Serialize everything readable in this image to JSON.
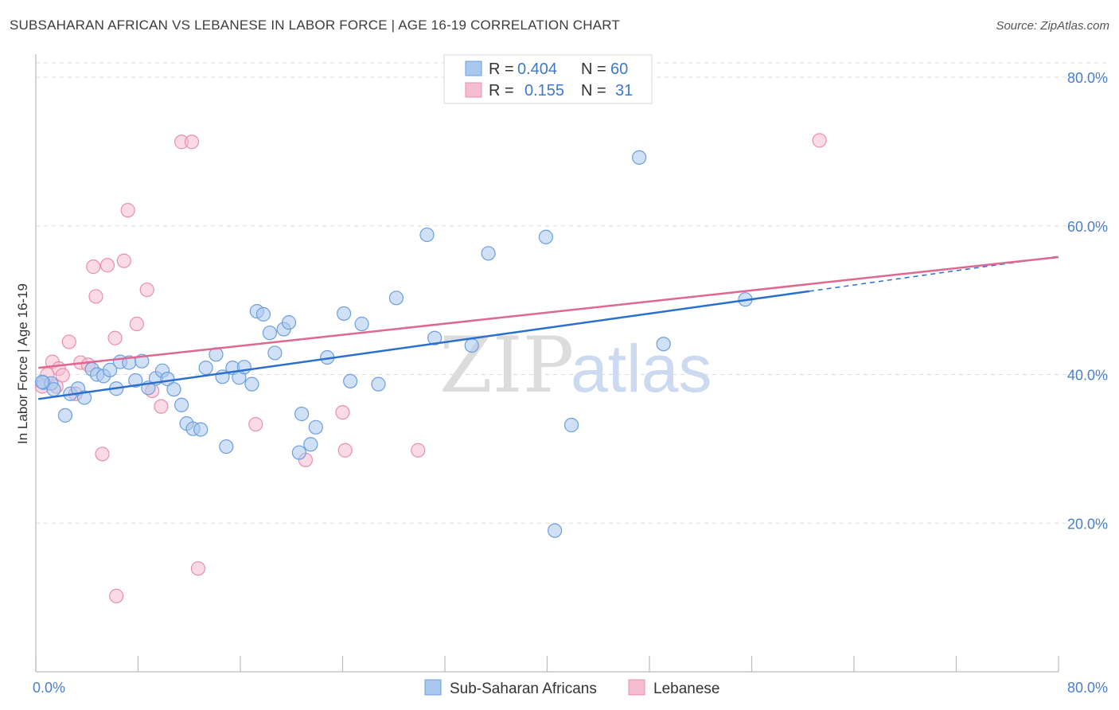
{
  "header": {
    "title": "SUBSAHARAN AFRICAN VS LEBANESE IN LABOR FORCE | AGE 16-19 CORRELATION CHART",
    "source": "Source: ZipAtlas.com"
  },
  "watermark": {
    "zip": "ZIP",
    "atlas": "atlas"
  },
  "legend": {
    "series": [
      {
        "r_label": "R =",
        "r_value": "0.404",
        "n_label": "N =",
        "n_value": "60"
      },
      {
        "r_label": "R =",
        "r_value": "0.155",
        "n_label": "N =",
        "n_value": "31"
      }
    ]
  },
  "chart_data": {
    "type": "scatter",
    "title": "SUBSAHARAN AFRICAN VS LEBANESE IN LABOR FORCE | AGE 16-19 CORRELATION CHART",
    "xlabel": "",
    "ylabel": "In Labor Force | Age 16-19",
    "xlim": [
      0,
      80
    ],
    "ylim": [
      0,
      80
    ],
    "x_tick_labels": [
      "0.0%",
      "80.0%"
    ],
    "y_ticks": [
      20,
      40,
      60,
      80
    ],
    "y_tick_labels": [
      "20.0%",
      "40.0%",
      "60.0%",
      "80.0%"
    ],
    "grid": true,
    "legend_position": "top-center",
    "colors": {
      "sub_saharan": "#a9c8f0",
      "sub_saharan_edge": "#6d9edc",
      "sub_saharan_line": "#2a6fd0",
      "lebanese": "#f6bdd0",
      "lebanese_edge": "#e88fae",
      "lebanese_line": "#e0678f"
    },
    "series": [
      {
        "name": "Sub-Saharan Africans",
        "trend": {
          "x0": 0.2,
          "y0": 36.7,
          "x1": 60.5,
          "y1": 51.2,
          "dashed_to_x": 80,
          "dashed_to_y": 55.9
        },
        "points": [
          [
            0.6,
            38.9
          ],
          [
            1.2,
            38.8
          ],
          [
            1.4,
            38.0
          ],
          [
            2.3,
            34.5
          ],
          [
            2.7,
            37.4
          ],
          [
            3.3,
            38.1
          ],
          [
            3.8,
            36.9
          ],
          [
            4.4,
            40.7
          ],
          [
            4.8,
            40.0
          ],
          [
            5.3,
            39.8
          ],
          [
            5.8,
            40.6
          ],
          [
            6.3,
            38.1
          ],
          [
            6.6,
            41.7
          ],
          [
            7.3,
            41.6
          ],
          [
            7.8,
            39.2
          ],
          [
            8.3,
            41.8
          ],
          [
            8.8,
            38.2
          ],
          [
            9.4,
            39.5
          ],
          [
            9.9,
            40.5
          ],
          [
            10.3,
            39.4
          ],
          [
            10.8,
            38.0
          ],
          [
            11.4,
            35.9
          ],
          [
            11.8,
            33.4
          ],
          [
            12.3,
            32.7
          ],
          [
            12.9,
            32.6
          ],
          [
            13.3,
            40.9
          ],
          [
            14.1,
            42.7
          ],
          [
            14.6,
            39.7
          ],
          [
            14.9,
            30.3
          ],
          [
            15.4,
            40.9
          ],
          [
            15.9,
            39.6
          ],
          [
            16.3,
            41.0
          ],
          [
            16.9,
            38.7
          ],
          [
            17.3,
            48.5
          ],
          [
            17.8,
            48.1
          ],
          [
            18.3,
            45.6
          ],
          [
            18.7,
            42.9
          ],
          [
            19.4,
            46.1
          ],
          [
            19.8,
            47.0
          ],
          [
            20.6,
            29.5
          ],
          [
            20.8,
            34.7
          ],
          [
            21.5,
            30.6
          ],
          [
            21.9,
            32.9
          ],
          [
            22.8,
            42.3
          ],
          [
            24.1,
            48.2
          ],
          [
            24.6,
            39.1
          ],
          [
            25.5,
            46.8
          ],
          [
            26.8,
            38.7
          ],
          [
            28.2,
            50.3
          ],
          [
            30.6,
            58.8
          ],
          [
            31.2,
            44.9
          ],
          [
            34.1,
            43.9
          ],
          [
            35.4,
            56.3
          ],
          [
            39.9,
            58.5
          ],
          [
            40.6,
            19.0
          ],
          [
            41.9,
            33.2
          ],
          [
            47.2,
            69.2
          ],
          [
            49.1,
            44.1
          ],
          [
            55.5,
            50.1
          ],
          [
            0.5,
            39.0
          ]
        ]
      },
      {
        "name": "Lebanese",
        "trend": {
          "x0": 0.2,
          "y0": 40.9,
          "x1": 80,
          "y1": 55.8
        },
        "points": [
          [
            0.5,
            38.4
          ],
          [
            0.9,
            40.0
          ],
          [
            1.3,
            41.7
          ],
          [
            1.6,
            38.4
          ],
          [
            1.8,
            40.8
          ],
          [
            2.1,
            39.9
          ],
          [
            2.6,
            44.4
          ],
          [
            3.1,
            37.4
          ],
          [
            3.5,
            41.6
          ],
          [
            4.1,
            41.3
          ],
          [
            4.5,
            54.5
          ],
          [
            4.7,
            50.5
          ],
          [
            5.2,
            29.3
          ],
          [
            5.6,
            54.7
          ],
          [
            6.2,
            44.9
          ],
          [
            6.3,
            10.2
          ],
          [
            6.9,
            55.3
          ],
          [
            7.2,
            62.1
          ],
          [
            7.9,
            46.8
          ],
          [
            8.7,
            51.4
          ],
          [
            9.1,
            37.8
          ],
          [
            9.8,
            35.7
          ],
          [
            11.4,
            71.3
          ],
          [
            12.2,
            71.3
          ],
          [
            12.7,
            13.9
          ],
          [
            17.2,
            33.3
          ],
          [
            21.1,
            28.5
          ],
          [
            24.0,
            34.9
          ],
          [
            24.2,
            29.8
          ],
          [
            29.9,
            29.8
          ],
          [
            61.3,
            71.5
          ]
        ]
      }
    ]
  },
  "bottom_legend": {
    "items": [
      "Sub-Saharan Africans",
      "Lebanese"
    ]
  }
}
